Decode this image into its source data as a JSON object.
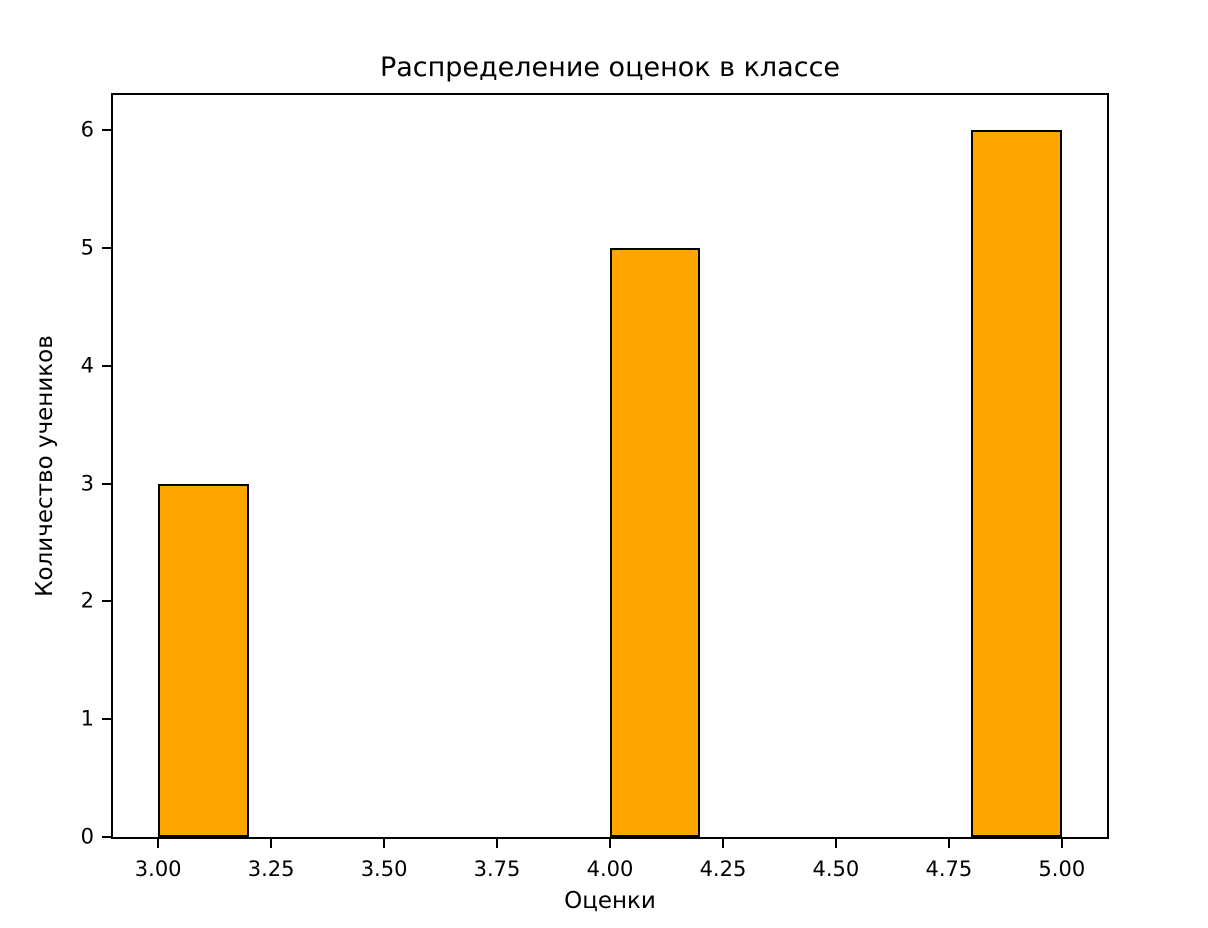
{
  "chart_data": {
    "type": "bar",
    "title": "Распределение оценок в классе",
    "xlabel": "Оценки",
    "ylabel": "Количество учеников",
    "bars": [
      {
        "x_start": 3.0,
        "x_end": 3.2,
        "value": 3
      },
      {
        "x_start": 4.0,
        "x_end": 4.2,
        "value": 5
      },
      {
        "x_start": 4.8,
        "x_end": 5.0,
        "value": 6
      }
    ],
    "x_tick_labels": [
      "3.00",
      "3.25",
      "3.50",
      "3.75",
      "4.00",
      "4.25",
      "4.50",
      "4.75",
      "5.00"
    ],
    "x_tick_values": [
      3.0,
      3.25,
      3.5,
      3.75,
      4.0,
      4.25,
      4.5,
      4.75,
      5.0
    ],
    "y_tick_labels": [
      "0",
      "1",
      "2",
      "3",
      "4",
      "5",
      "6"
    ],
    "y_tick_values": [
      0,
      1,
      2,
      3,
      4,
      5,
      6
    ],
    "xlim": [
      2.9,
      5.1
    ],
    "ylim": [
      0,
      6.3
    ],
    "grid": false,
    "legend": null,
    "bar_color": "#FFA500",
    "bar_edge_color": "#000000"
  }
}
